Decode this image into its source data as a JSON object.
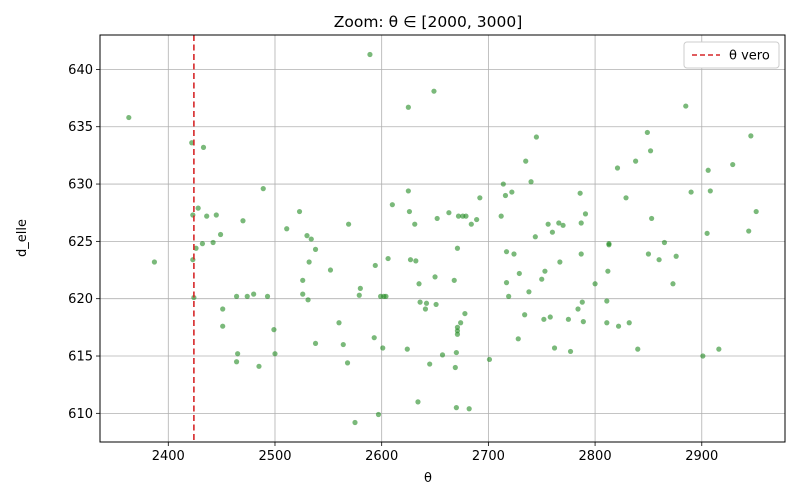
{
  "chart_data": {
    "type": "scatter",
    "title": "Zoom: θ ∈ [2000, 3000]",
    "xlabel": "θ",
    "ylabel": "d_elle",
    "xlim": [
      2336,
      2978
    ],
    "ylim": [
      607.5,
      643
    ],
    "xticks": [
      2400,
      2500,
      2600,
      2700,
      2800,
      2900
    ],
    "xtick_labels": [
      "2400",
      "2500",
      "2600",
      "2700",
      "2800",
      "2900"
    ],
    "yticks": [
      610,
      615,
      620,
      625,
      630,
      635,
      640
    ],
    "ytick_labels": [
      "610",
      "615",
      "620",
      "625",
      "630",
      "635",
      "640"
    ],
    "grid": true,
    "legend_position": "top-right",
    "point_color": "#228b22",
    "vline_color": "#d62728",
    "vline": {
      "x": 2424,
      "label": "θ vero",
      "style": "dashed"
    },
    "legend": [
      {
        "label": "θ vero",
        "style": "dashed",
        "color": "#d62728"
      }
    ],
    "series": [
      {
        "points": [
          [
            2363,
            635.8
          ],
          [
            2387,
            623.2
          ],
          [
            2422,
            633.6
          ],
          [
            2423,
            627.3
          ],
          [
            2423,
            623.4
          ],
          [
            2424,
            620.1
          ],
          [
            2426,
            624.4
          ],
          [
            2428,
            627.9
          ],
          [
            2432,
            624.8
          ],
          [
            2433,
            633.2
          ],
          [
            2436,
            627.2
          ],
          [
            2442,
            624.9
          ],
          [
            2445,
            627.3
          ],
          [
            2449,
            625.6
          ],
          [
            2451,
            619.1
          ],
          [
            2451,
            617.6
          ],
          [
            2464,
            620.2
          ],
          [
            2464,
            614.5
          ],
          [
            2465,
            615.2
          ],
          [
            2470,
            626.8
          ],
          [
            2474,
            620.2
          ],
          [
            2480,
            620.4
          ],
          [
            2485,
            614.1
          ],
          [
            2489,
            629.6
          ],
          [
            2493,
            620.2
          ],
          [
            2499,
            617.3
          ],
          [
            2500,
            615.2
          ],
          [
            2511,
            626.1
          ],
          [
            2523,
            627.6
          ],
          [
            2526,
            621.6
          ],
          [
            2526,
            620.4
          ],
          [
            2530,
            625.5
          ],
          [
            2531,
            619.9
          ],
          [
            2532,
            623.2
          ],
          [
            2534,
            625.2
          ],
          [
            2538,
            624.3
          ],
          [
            2538,
            616.1
          ],
          [
            2552,
            622.5
          ],
          [
            2560,
            617.9
          ],
          [
            2564,
            616.0
          ],
          [
            2568,
            614.4
          ],
          [
            2569,
            626.5
          ],
          [
            2575,
            609.2
          ],
          [
            2579,
            620.3
          ],
          [
            2580,
            620.9
          ],
          [
            2589,
            641.3
          ],
          [
            2593,
            616.6
          ],
          [
            2594,
            622.9
          ],
          [
            2597,
            609.9
          ],
          [
            2599,
            620.2
          ],
          [
            2601,
            615.7
          ],
          [
            2602,
            620.2
          ],
          [
            2604,
            620.2
          ],
          [
            2606,
            623.5
          ],
          [
            2610,
            628.2
          ],
          [
            2624,
            615.6
          ],
          [
            2625,
            636.7
          ],
          [
            2625,
            629.4
          ],
          [
            2626,
            627.6
          ],
          [
            2627,
            623.4
          ],
          [
            2631,
            626.5
          ],
          [
            2632,
            623.3
          ],
          [
            2634,
            611.0
          ],
          [
            2635,
            621.3
          ],
          [
            2636,
            619.7
          ],
          [
            2641,
            619.1
          ],
          [
            2642,
            619.6
          ],
          [
            2645,
            614.3
          ],
          [
            2649,
            638.1
          ],
          [
            2650,
            621.9
          ],
          [
            2651,
            619.5
          ],
          [
            2652,
            627.0
          ],
          [
            2657,
            615.1
          ],
          [
            2663,
            627.5
          ],
          [
            2668,
            621.6
          ],
          [
            2669,
            614.0
          ],
          [
            2670,
            610.5
          ],
          [
            2670,
            615.3
          ],
          [
            2671,
            616.9
          ],
          [
            2671,
            617.2
          ],
          [
            2671,
            617.5
          ],
          [
            2671,
            624.4
          ],
          [
            2672,
            627.2
          ],
          [
            2674,
            617.9
          ],
          [
            2676,
            627.2
          ],
          [
            2678,
            618.7
          ],
          [
            2679,
            627.2
          ],
          [
            2682,
            610.4
          ],
          [
            2684,
            626.5
          ],
          [
            2689,
            626.9
          ],
          [
            2692,
            628.8
          ],
          [
            2701,
            614.7
          ],
          [
            2712,
            627.2
          ],
          [
            2714,
            630.0
          ],
          [
            2716,
            629.0
          ],
          [
            2717,
            624.1
          ],
          [
            2717,
            621.4
          ],
          [
            2719,
            620.2
          ],
          [
            2722,
            629.3
          ],
          [
            2724,
            623.9
          ],
          [
            2728,
            616.5
          ],
          [
            2729,
            622.2
          ],
          [
            2734,
            618.6
          ],
          [
            2735,
            632.0
          ],
          [
            2738,
            620.6
          ],
          [
            2740,
            630.2
          ],
          [
            2744,
            625.4
          ],
          [
            2745,
            634.1
          ],
          [
            2750,
            621.7
          ],
          [
            2752,
            618.2
          ],
          [
            2753,
            622.4
          ],
          [
            2756,
            626.5
          ],
          [
            2758,
            618.4
          ],
          [
            2760,
            625.8
          ],
          [
            2762,
            615.7
          ],
          [
            2766,
            626.6
          ],
          [
            2767,
            623.2
          ],
          [
            2770,
            626.4
          ],
          [
            2775,
            618.2
          ],
          [
            2777,
            615.4
          ],
          [
            2784,
            619.1
          ],
          [
            2786,
            629.2
          ],
          [
            2787,
            623.9
          ],
          [
            2787,
            626.6
          ],
          [
            2788,
            619.7
          ],
          [
            2789,
            618.0
          ],
          [
            2791,
            627.4
          ],
          [
            2800,
            621.3
          ],
          [
            2811,
            617.9
          ],
          [
            2811,
            619.8
          ],
          [
            2812,
            622.4
          ],
          [
            2813,
            624.7
          ],
          [
            2813,
            624.8
          ],
          [
            2821,
            631.4
          ],
          [
            2822,
            617.6
          ],
          [
            2829,
            628.8
          ],
          [
            2832,
            617.9
          ],
          [
            2838,
            632.0
          ],
          [
            2840,
            615.6
          ],
          [
            2849,
            634.5
          ],
          [
            2850,
            623.9
          ],
          [
            2852,
            632.9
          ],
          [
            2853,
            627.0
          ],
          [
            2860,
            623.4
          ],
          [
            2865,
            624.9
          ],
          [
            2873,
            621.3
          ],
          [
            2876,
            623.7
          ],
          [
            2885,
            636.8
          ],
          [
            2890,
            629.3
          ],
          [
            2901,
            615.0
          ],
          [
            2905,
            625.7
          ],
          [
            2906,
            631.2
          ],
          [
            2908,
            629.4
          ],
          [
            2916,
            615.6
          ],
          [
            2929,
            631.7
          ],
          [
            2944,
            625.9
          ],
          [
            2946,
            634.2
          ],
          [
            2951,
            627.6
          ]
        ]
      }
    ]
  }
}
